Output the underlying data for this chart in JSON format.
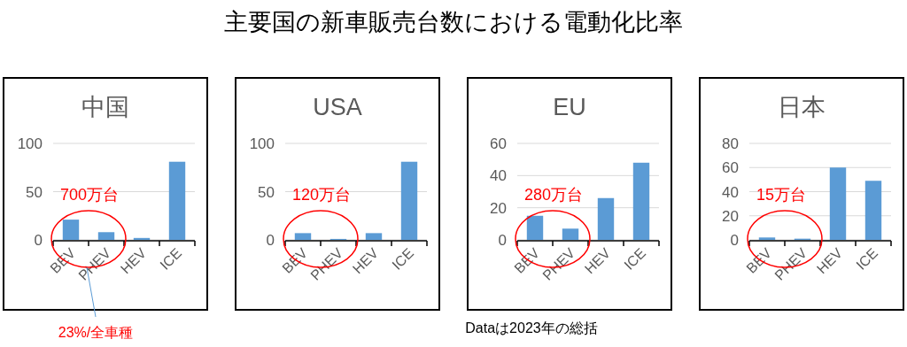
{
  "chart_data": [
    {
      "type": "other",
      "title": "主要国の新車販売台数における電動化比率",
      "annotations": [
        "Dataは2023年の総括"
      ]
    },
    {
      "type": "bar",
      "title": "中国",
      "categories": [
        "BEV",
        "PHEV",
        "HEV",
        "ICE"
      ],
      "values": [
        21,
        8,
        2,
        81
      ],
      "color": "#5b9bd5",
      "ylim": [
        0,
        100
      ],
      "yticks": [
        0,
        50,
        100
      ],
      "grid": "y",
      "annotations": [
        "700万台",
        "23%/全車種"
      ]
    },
    {
      "type": "bar",
      "title": "USA",
      "categories": [
        "BEV",
        "PHEV",
        "HEV",
        "ICE"
      ],
      "values": [
        7,
        1,
        7,
        81
      ],
      "color": "#5b9bd5",
      "ylim": [
        0,
        100
      ],
      "yticks": [
        0,
        50,
        100
      ],
      "grid": "y",
      "annotations": [
        "120万台"
      ]
    },
    {
      "type": "bar",
      "title": "EU",
      "categories": [
        "BEV",
        "PHEV",
        "HEV",
        "ICE"
      ],
      "values": [
        15,
        7,
        26,
        48
      ],
      "color": "#5b9bd5",
      "ylim": [
        0,
        60
      ],
      "yticks": [
        0,
        20,
        40,
        60
      ],
      "grid": "y",
      "annotations": [
        "280万台"
      ]
    },
    {
      "type": "bar",
      "title": "日本",
      "categories": [
        "BEV",
        "PHEV",
        "HEV",
        "ICE"
      ],
      "values": [
        2,
        1,
        60,
        49
      ],
      "color": "#5b9bd5",
      "ylim": [
        0,
        80
      ],
      "yticks": [
        0,
        20,
        40,
        60,
        80
      ],
      "grid": "y",
      "annotations": [
        "15万台"
      ]
    }
  ]
}
